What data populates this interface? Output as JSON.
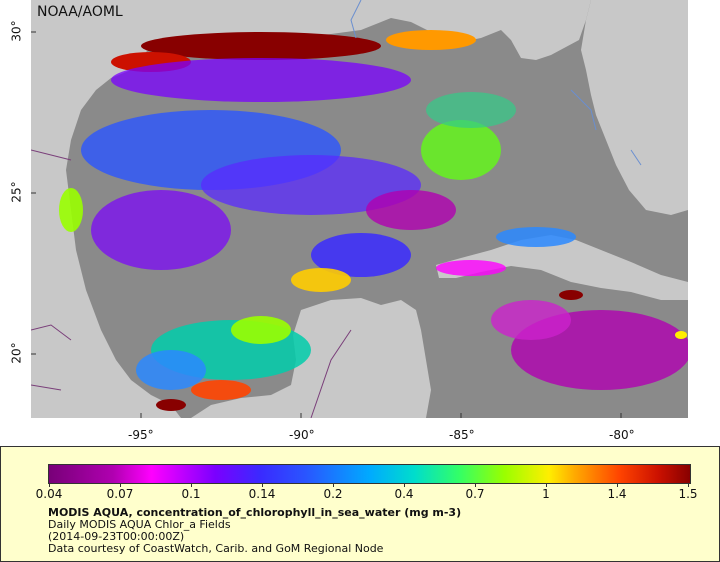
{
  "map": {
    "credit": "NOAA/AOML",
    "lon_labels": [
      "-95°",
      "-90°",
      "-85°",
      "-80°"
    ],
    "lat_labels": [
      "30°",
      "25°",
      "20°"
    ],
    "colors": {
      "land": "#c8c8c8",
      "no_data": "#8a8a8a",
      "boundaries": "#7a3f7a",
      "rivers": "#6a8fd0"
    }
  },
  "legend": {
    "scale": "log",
    "ticks": [
      "0.04",
      "0.07",
      "0.1",
      "0.14",
      "0.2",
      "0.4",
      "0.7",
      "1",
      "1.4",
      "1.5"
    ],
    "title": "MODIS AQUA, concentration_of_chlorophyll_in_sea_water (mg m-3)",
    "line2": "Daily MODIS AQUA Chlor_a Fields",
    "line3": "(2014-09-23T00:00:00Z)",
    "line4": "Data courtesy of CoastWatch, Carib. and GoM Regional Node"
  }
}
